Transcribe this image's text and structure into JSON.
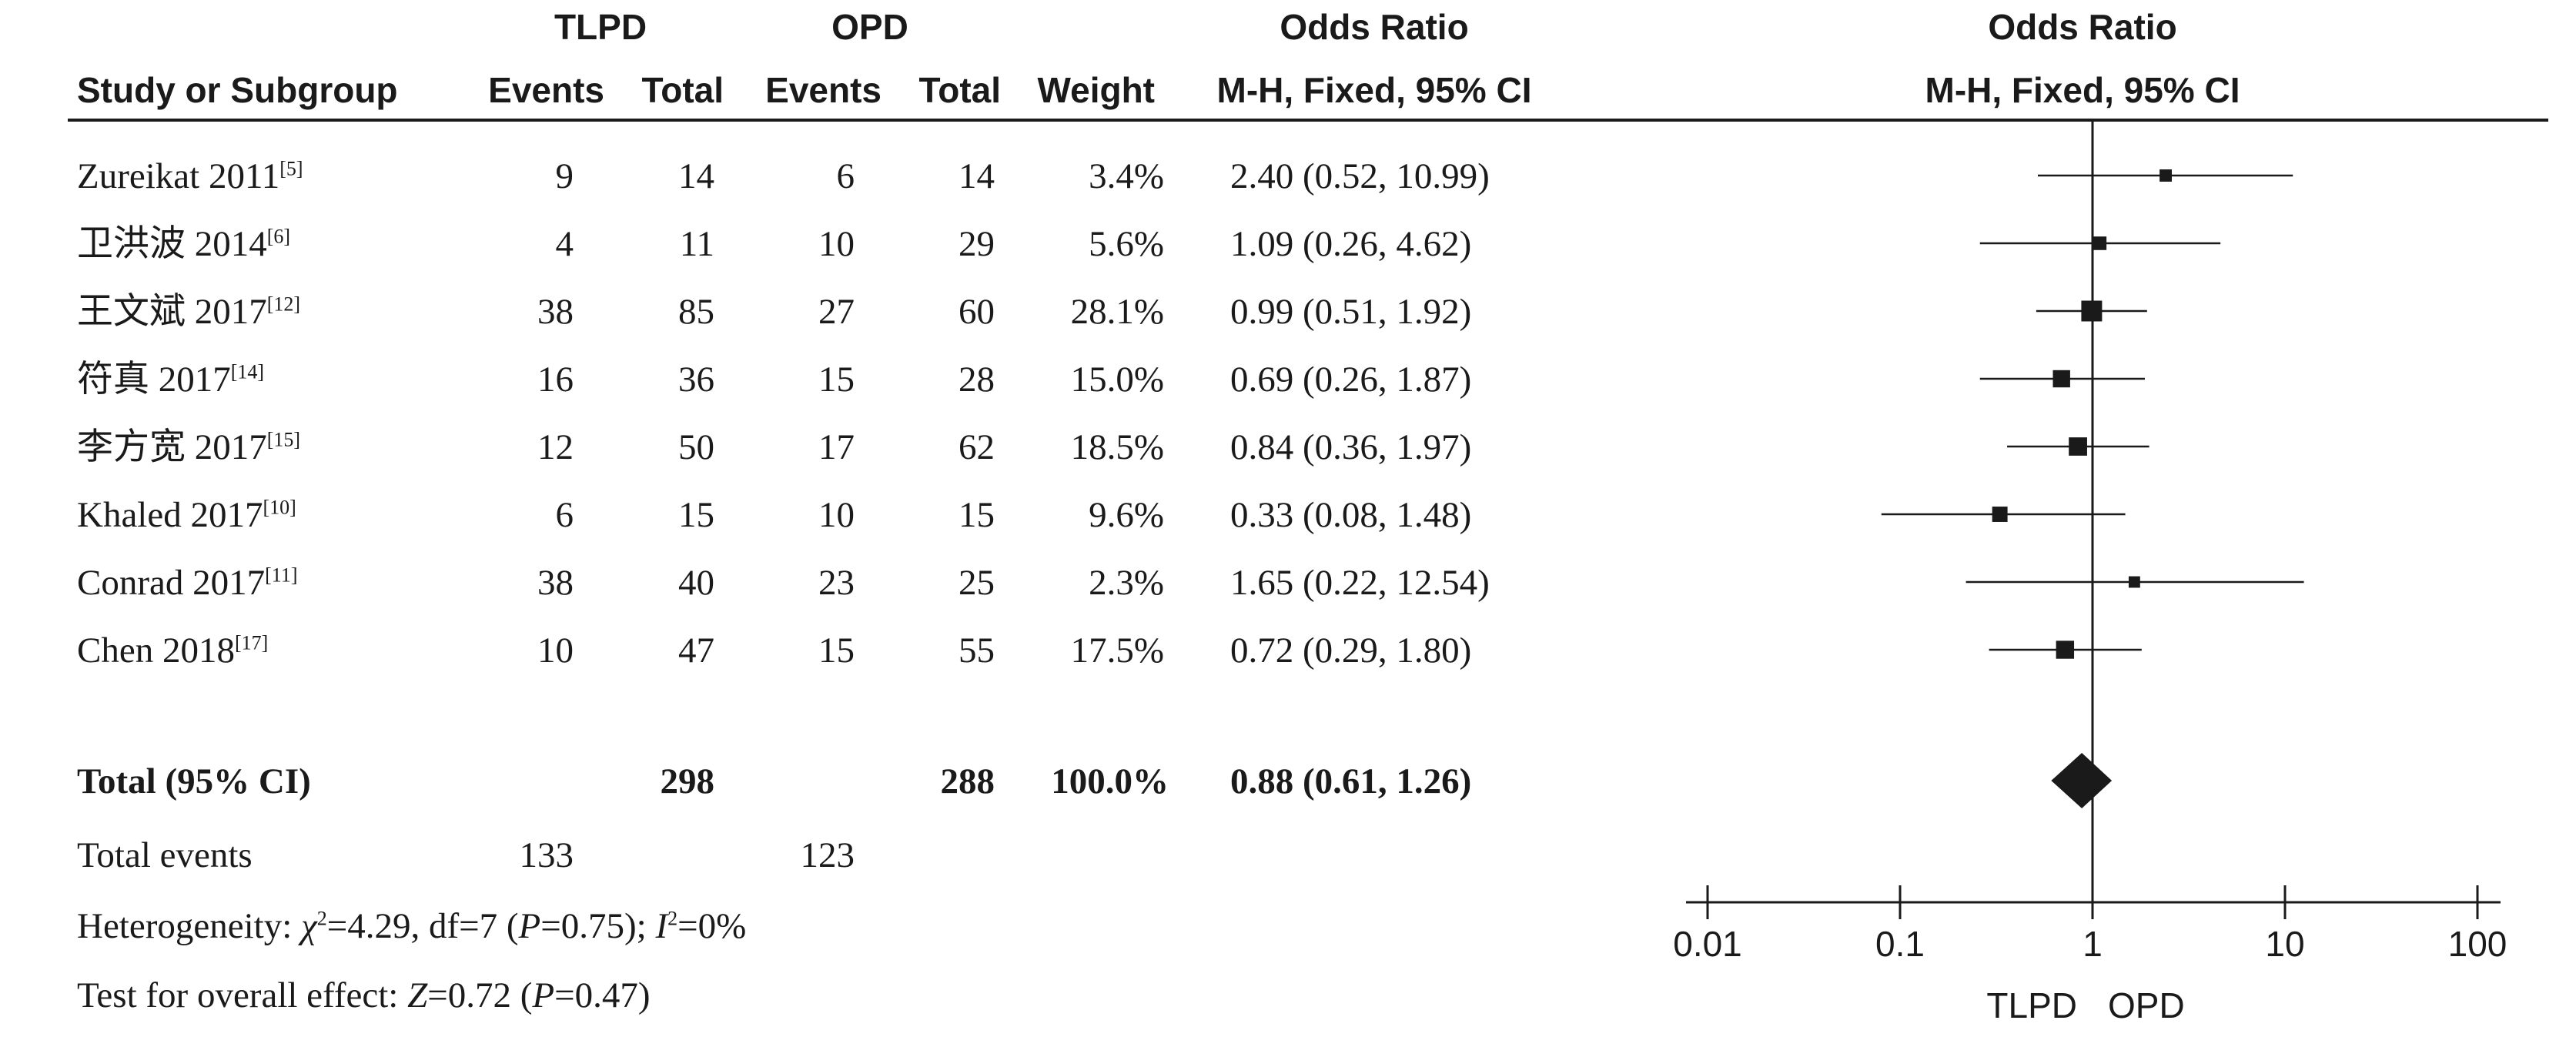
{
  "headers": {
    "group1": "TLPD",
    "group2": "OPD",
    "or_title_left": "Odds Ratio",
    "or_method_left": "M-H, Fixed, 95% CI",
    "or_title_right": "Odds Ratio",
    "or_method_right": "M-H, Fixed, 95% CI",
    "study": "Study or Subgroup",
    "events1": "Events",
    "total1": "Total",
    "events2": "Events",
    "total2": "Total",
    "weight": "Weight"
  },
  "studies": [
    {
      "name": "Zureikat 2011",
      "ref": "[5]",
      "e1": "9",
      "t1": "14",
      "e2": "6",
      "t2": "14",
      "weight": "3.4%",
      "ci": "2.40 (0.52, 10.99)"
    },
    {
      "name": "卫洪波 2014",
      "ref": "[6]",
      "e1": "4",
      "t1": "11",
      "e2": "10",
      "t2": "29",
      "weight": "5.6%",
      "ci": "1.09 (0.26, 4.62)"
    },
    {
      "name": "王文斌 2017",
      "ref": "[12]",
      "e1": "38",
      "t1": "85",
      "e2": "27",
      "t2": "60",
      "weight": "28.1%",
      "ci": "0.99 (0.51, 1.92)"
    },
    {
      "name": "符真 2017",
      "ref": "[14]",
      "e1": "16",
      "t1": "36",
      "e2": "15",
      "t2": "28",
      "weight": "15.0%",
      "ci": "0.69 (0.26, 1.87)"
    },
    {
      "name": "李方宽 2017",
      "ref": "[15]",
      "e1": "12",
      "t1": "50",
      "e2": "17",
      "t2": "62",
      "weight": "18.5%",
      "ci": "0.84 (0.36, 1.97)"
    },
    {
      "name": "Khaled 2017",
      "ref": "[10]",
      "e1": "6",
      "t1": "15",
      "e2": "10",
      "t2": "15",
      "weight": "9.6%",
      "ci": "0.33 (0.08, 1.48)"
    },
    {
      "name": "Conrad 2017",
      "ref": "[11]",
      "e1": "38",
      "t1": "40",
      "e2": "23",
      "t2": "25",
      "weight": "2.3%",
      "ci": "1.65 (0.22, 12.54)"
    },
    {
      "name": "Chen 2018",
      "ref": "[17]",
      "e1": "10",
      "t1": "47",
      "e2": "15",
      "t2": "55",
      "weight": "17.5%",
      "ci": "0.72 (0.29, 1.80)"
    }
  ],
  "total": {
    "label": "Total (95% CI)",
    "t1": "298",
    "t2": "288",
    "weight": "100.0%",
    "ci": "0.88 (0.61, 1.26)"
  },
  "total_events": {
    "label": "Total events",
    "e1": "133",
    "e2": "123"
  },
  "heterogeneity": {
    "prefix": "Heterogeneity: ",
    "chi_symbol": "χ",
    "chi_sup": "2",
    "chi_value": "=4.29, df=7 (",
    "p_symbol": "P",
    "p_value": "=0.75); ",
    "i_symbol": "I",
    "i_sup": "2",
    "i_value": "=0%"
  },
  "overall_effect": {
    "prefix": "Test for overall effect: ",
    "z_symbol": "Z",
    "z_value": "=0.72 (",
    "p_symbol": "P",
    "p_value": "=0.47)"
  },
  "chart_data": {
    "type": "forest",
    "scale": "log10",
    "xlim": [
      0.01,
      100
    ],
    "ticks": [
      0.01,
      0.1,
      1,
      10,
      100
    ],
    "tick_labels": [
      "0.01",
      "0.1",
      "1",
      "10",
      "100"
    ],
    "favours_left": "TLPD",
    "favours_right": "OPD",
    "points": [
      {
        "or": 2.4,
        "lo": 0.52,
        "hi": 10.99,
        "weight": 3.4
      },
      {
        "or": 1.09,
        "lo": 0.26,
        "hi": 4.62,
        "weight": 5.6
      },
      {
        "or": 0.99,
        "lo": 0.51,
        "hi": 1.92,
        "weight": 28.1
      },
      {
        "or": 0.69,
        "lo": 0.26,
        "hi": 1.87,
        "weight": 15.0
      },
      {
        "or": 0.84,
        "lo": 0.36,
        "hi": 1.97,
        "weight": 18.5
      },
      {
        "or": 0.33,
        "lo": 0.08,
        "hi": 1.48,
        "weight": 9.6
      },
      {
        "or": 1.65,
        "lo": 0.22,
        "hi": 12.54,
        "weight": 2.3
      },
      {
        "or": 0.72,
        "lo": 0.29,
        "hi": 1.8,
        "weight": 17.5
      }
    ],
    "pooled": {
      "or": 0.88,
      "lo": 0.61,
      "hi": 1.26
    }
  }
}
